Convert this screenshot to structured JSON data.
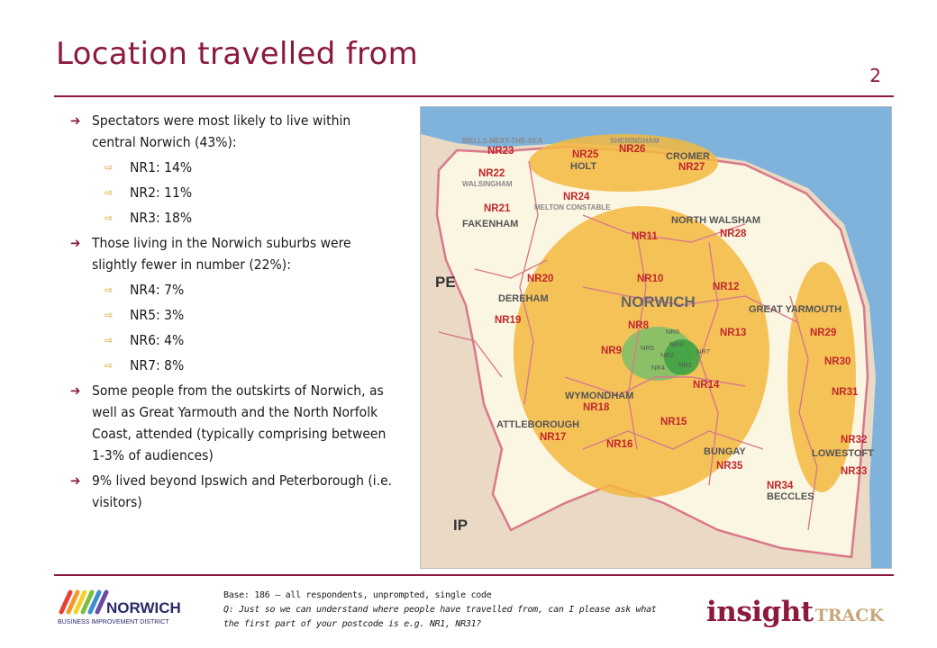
{
  "header": {
    "title": "Location travelled from",
    "page_number": "2"
  },
  "bullets": [
    {
      "level": 1,
      "text": "Spectators were most likely to live within central Norwich (43%):"
    },
    {
      "level": 2,
      "text": "NR1: 14%"
    },
    {
      "level": 2,
      "text": "NR2: 11%"
    },
    {
      "level": 2,
      "text": "NR3: 18%"
    },
    {
      "level": 1,
      "text": "Those living in the Norwich suburbs were slightly fewer in number (22%):"
    },
    {
      "level": 2,
      "text": "NR4: 7%"
    },
    {
      "level": 2,
      "text": "NR5: 3%"
    },
    {
      "level": 2,
      "text": "NR6: 4%"
    },
    {
      "level": 2,
      "text": "NR7: 8%"
    },
    {
      "level": 1,
      "text": "Some people from the outskirts of Norwich, as well as Great Yarmouth and the North Norfolk Coast, attended (typically comprising between 1-3% of audiences)"
    },
    {
      "level": 1,
      "text": "9% lived beyond Ipswich and Peterborough (i.e. visitors)"
    }
  ],
  "map": {
    "place_labels": {
      "pe": "PE",
      "ip": "IP",
      "wells": "WELLS-NEXT-THE-SEA",
      "sheringham": "SHERINGHAM",
      "cromer": "CROMER",
      "holt": "HOLT",
      "walsingham": "WALSINGHAM",
      "melton": "MELTON CONSTABLE",
      "fakenham": "FAKENHAM",
      "north_walsham": "NORTH WALSHAM",
      "dereham": "DEREHAM",
      "norwich": "NORWICH",
      "great_yarmouth": "GREAT YARMOUTH",
      "wymondham": "WYMONDHAM",
      "attleborough": "ATTLEBOROUGH",
      "bungay": "BUNGAY",
      "lowestoft": "LOWESTOFT",
      "beccles": "BECCLES"
    },
    "district_labels": {
      "nr23": "NR23",
      "nr25": "NR25",
      "nr26": "NR26",
      "nr27": "NR27",
      "nr22": "NR22",
      "nr24": "NR24",
      "nr21": "NR21",
      "nr11": "NR11",
      "nr28": "NR28",
      "nr20": "NR20",
      "nr10": "NR10",
      "nr12": "NR12",
      "nr19": "NR19",
      "nr8": "NR8",
      "nr13": "NR13",
      "nr29": "NR29",
      "nr9": "NR9",
      "nr30": "NR30",
      "nr14": "NR14",
      "nr31": "NR31",
      "nr18": "NR18",
      "nr15": "NR15",
      "nr17": "NR17",
      "nr16": "NR16",
      "nr32": "NR32",
      "nr35": "NR35",
      "nr34": "NR34",
      "nr33": "NR33",
      "nr6": "NR6",
      "nr3": "NR3",
      "nr5": "NR5",
      "nr2": "NR2",
      "nr7": "NR7",
      "nr4": "NR4",
      "nr1": "NR1"
    },
    "colors": {
      "sea": "#7fb3dc",
      "land_outside": "#ead9c4",
      "norfolk": "#fbf6e2",
      "orange_zone": "#f3b83f",
      "green_zone": "#7fc069",
      "dark_green": "#3fa244",
      "boundary": "#d9788a",
      "label": "#c0282c"
    }
  },
  "footer": {
    "base": "Base: 186 – all respondents, unprompted, single code",
    "question": "Q: Just so we can understand where people have travelled from, can I please ask what the first part of your postcode is e.g. NR1, NR31?",
    "logo_left": "NORWICH",
    "logo_left_sub": "BUSINESS IMPROVEMENT DISTRICT",
    "logo_right_a": "insight",
    "logo_right_b": "TRACK"
  }
}
